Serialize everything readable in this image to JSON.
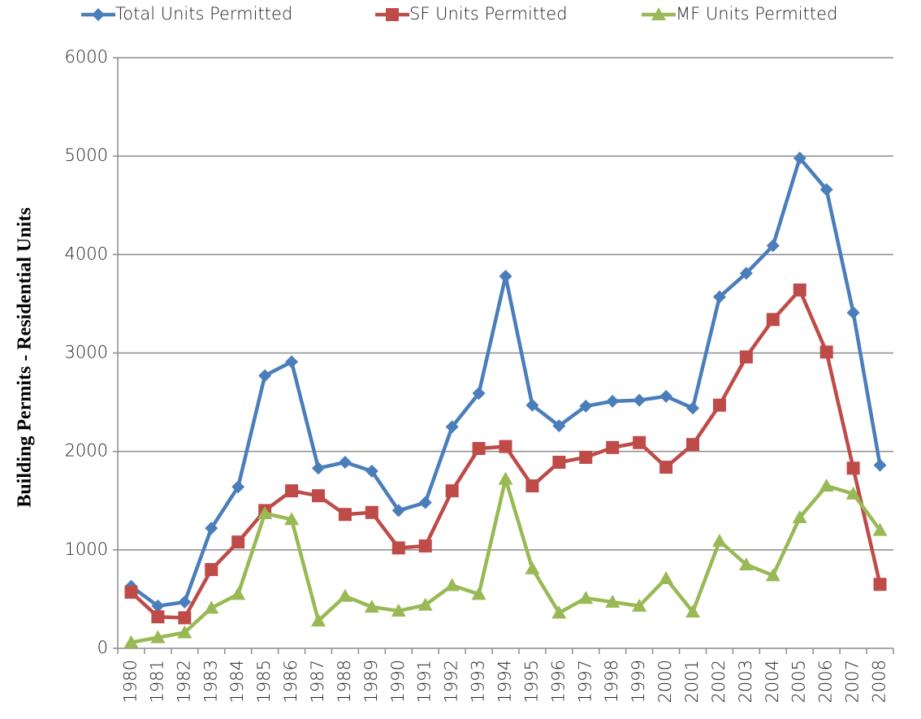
{
  "chart_data": {
    "type": "line",
    "y_label": "Building Permits - Residential Units",
    "categories": [
      "1980",
      "1981",
      "1982",
      "1983",
      "1984",
      "1985",
      "1986",
      "1987",
      "1988",
      "1989",
      "1990",
      "1991",
      "1992",
      "1993",
      "1994",
      "1995",
      "1996",
      "1997",
      "1998",
      "1999",
      "2000",
      "2001",
      "2002",
      "2003",
      "2004",
      "2005",
      "2006",
      "2007",
      "2008"
    ],
    "series": [
      {
        "name": "Total Units Permitted",
        "color": "#4a7ebb",
        "marker": "diamond",
        "values": [
          630,
          430,
          470,
          1220,
          1640,
          2770,
          2910,
          1830,
          1890,
          1800,
          1400,
          1480,
          2250,
          2590,
          3780,
          2470,
          2260,
          2460,
          2510,
          2520,
          2560,
          2440,
          3570,
          3810,
          4090,
          4980,
          4660,
          3410,
          1860
        ]
      },
      {
        "name": "SF Units Permitted",
        "color": "#be4b48",
        "marker": "square",
        "values": [
          570,
          320,
          310,
          800,
          1080,
          1400,
          1600,
          1550,
          1360,
          1380,
          1020,
          1040,
          1600,
          2030,
          2050,
          1650,
          1890,
          1940,
          2040,
          2090,
          1840,
          2070,
          2470,
          2960,
          3340,
          3640,
          3010,
          1830,
          650
        ]
      },
      {
        "name": "MF Units Permitted",
        "color": "#98b954",
        "marker": "triangle",
        "values": [
          60,
          110,
          160,
          410,
          550,
          1370,
          1310,
          280,
          530,
          420,
          380,
          440,
          640,
          550,
          1720,
          810,
          360,
          510,
          470,
          430,
          710,
          370,
          1090,
          850,
          740,
          1330,
          1650,
          1570,
          1200
        ]
      }
    ],
    "ylim": [
      0,
      6000
    ],
    "yticks": [
      0,
      1000,
      2000,
      3000,
      4000,
      5000,
      6000
    ],
    "grid": true,
    "legend": "top"
  }
}
